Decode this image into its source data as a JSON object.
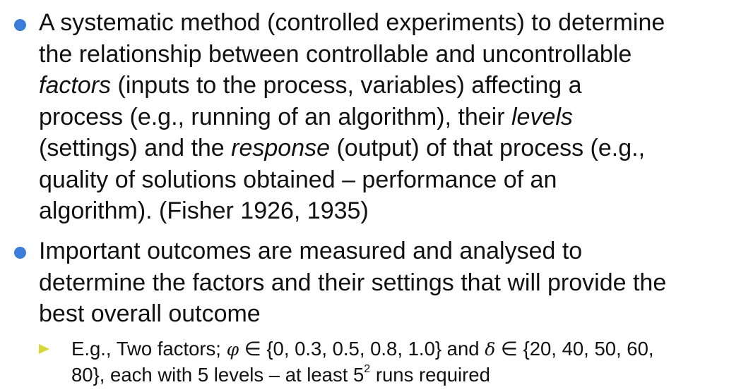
{
  "colors": {
    "bullet": "#3b7dd8",
    "sub_bullet": "#d6d83a",
    "text": "#111111"
  },
  "bullets": [
    {
      "icon": "circle-bullet-icon",
      "lines": [
        {
          "parts": [
            "A systematic method (controlled experiments) to determine"
          ]
        },
        {
          "parts": [
            "the relationship between controllable and uncontrollable"
          ]
        },
        {
          "parts": [
            "factors",
            " (inputs to the process, variables) affecting a"
          ]
        },
        {
          "parts": [
            "process (e.g., running of an algorithm), their ",
            "levels"
          ]
        },
        {
          "parts": [
            "(settings) and the ",
            "response",
            " (output) of that process (e.g.,"
          ]
        },
        {
          "parts": [
            "quality of solutions obtained – performance of an"
          ]
        },
        {
          "parts": [
            "algorithm). (Fisher 1926, 1935)"
          ]
        }
      ]
    },
    {
      "icon": "circle-bullet-icon",
      "lines": [
        {
          "parts": [
            "Important outcomes are measured and analysed to"
          ]
        },
        {
          "parts": [
            "determine the factors and their settings that will provide the"
          ]
        },
        {
          "parts": [
            "best overall outcome"
          ]
        }
      ],
      "sub_bullets": [
        {
          "icon": "triangle-arrow-bullet-icon",
          "line1": [
            "E.g., Two factors; ",
            "φ",
            " ∈ {0, 0.3, 0.5, 0.8, 1.0} and ",
            "δ",
            " ∈ {20, 40, 50, 60,"
          ],
          "line2": [
            "80}, each with 5 levels – at least 5",
            "2",
            " runs required"
          ]
        }
      ]
    }
  ]
}
